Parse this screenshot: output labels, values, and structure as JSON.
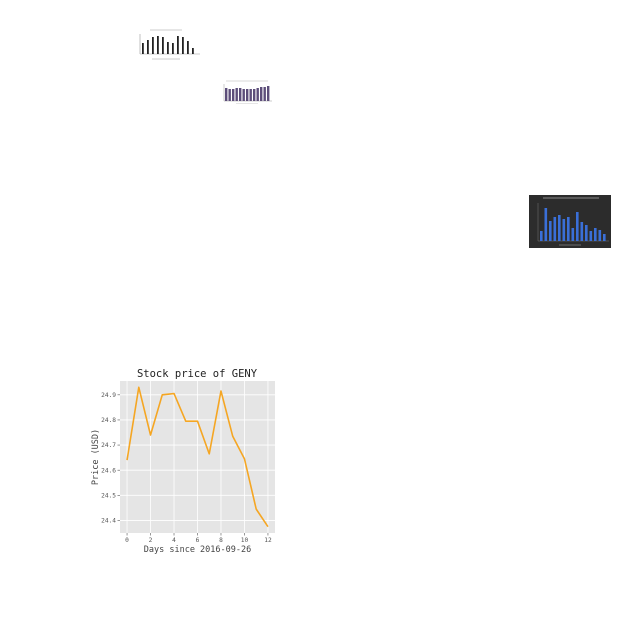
{
  "chart_data": [
    {
      "type": "line",
      "title": "Stock price of GENY",
      "xlabel": "Days since 2016-09-26",
      "ylabel": "Price (USD)",
      "x": [
        0,
        1,
        2,
        3,
        4,
        5,
        6,
        7,
        8,
        9,
        10,
        11,
        12
      ],
      "series": [
        {
          "values": [
            24.64,
            24.93,
            24.74,
            24.9,
            24.905,
            24.795,
            24.795,
            24.665,
            24.915,
            24.735,
            24.645,
            24.445,
            24.375
          ],
          "color": "#f5a623"
        }
      ],
      "xlim": [
        -0.6,
        12.6
      ],
      "ylim": [
        24.35,
        24.955
      ],
      "xticks": [
        0,
        2,
        4,
        6,
        8,
        10,
        12
      ],
      "yticks": [
        24.4,
        24.5,
        24.6,
        24.7,
        24.8,
        24.9
      ],
      "grid": true,
      "background": "#e5e5e5"
    }
  ]
}
